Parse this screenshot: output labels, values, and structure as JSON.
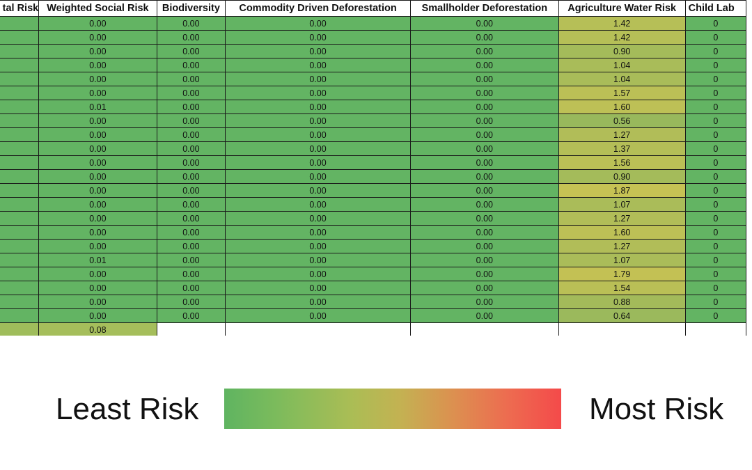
{
  "columns": [
    "tal Risk",
    "Weighted Social Risk",
    "Biodiversity",
    "Commodity Driven Deforestation",
    "Smallholder Deforestation",
    "Agriculture Water Risk",
    "Child Lab"
  ],
  "rows": [
    {
      "social": "0.00",
      "bio": "0.00",
      "commodity": "0.00",
      "smallholder": "0.00",
      "water": "1.42",
      "child": "0"
    },
    {
      "social": "0.00",
      "bio": "0.00",
      "commodity": "0.00",
      "smallholder": "0.00",
      "water": "1.42",
      "child": "0"
    },
    {
      "social": "0.00",
      "bio": "0.00",
      "commodity": "0.00",
      "smallholder": "0.00",
      "water": "0.90",
      "child": "0"
    },
    {
      "social": "0.00",
      "bio": "0.00",
      "commodity": "0.00",
      "smallholder": "0.00",
      "water": "1.04",
      "child": "0"
    },
    {
      "social": "0.00",
      "bio": "0.00",
      "commodity": "0.00",
      "smallholder": "0.00",
      "water": "1.04",
      "child": "0"
    },
    {
      "social": "0.00",
      "bio": "0.00",
      "commodity": "0.00",
      "smallholder": "0.00",
      "water": "1.57",
      "child": "0"
    },
    {
      "social": "0.01",
      "bio": "0.00",
      "commodity": "0.00",
      "smallholder": "0.00",
      "water": "1.60",
      "child": "0"
    },
    {
      "social": "0.00",
      "bio": "0.00",
      "commodity": "0.00",
      "smallholder": "0.00",
      "water": "0.56",
      "child": "0"
    },
    {
      "social": "0.00",
      "bio": "0.00",
      "commodity": "0.00",
      "smallholder": "0.00",
      "water": "1.27",
      "child": "0"
    },
    {
      "social": "0.00",
      "bio": "0.00",
      "commodity": "0.00",
      "smallholder": "0.00",
      "water": "1.37",
      "child": "0"
    },
    {
      "social": "0.00",
      "bio": "0.00",
      "commodity": "0.00",
      "smallholder": "0.00",
      "water": "1.56",
      "child": "0"
    },
    {
      "social": "0.00",
      "bio": "0.00",
      "commodity": "0.00",
      "smallholder": "0.00",
      "water": "0.90",
      "child": "0"
    },
    {
      "social": "0.00",
      "bio": "0.00",
      "commodity": "0.00",
      "smallholder": "0.00",
      "water": "1.87",
      "child": "0"
    },
    {
      "social": "0.00",
      "bio": "0.00",
      "commodity": "0.00",
      "smallholder": "0.00",
      "water": "1.07",
      "child": "0"
    },
    {
      "social": "0.00",
      "bio": "0.00",
      "commodity": "0.00",
      "smallholder": "0.00",
      "water": "1.27",
      "child": "0"
    },
    {
      "social": "0.00",
      "bio": "0.00",
      "commodity": "0.00",
      "smallholder": "0.00",
      "water": "1.60",
      "child": "0"
    },
    {
      "social": "0.00",
      "bio": "0.00",
      "commodity": "0.00",
      "smallholder": "0.00",
      "water": "1.27",
      "child": "0"
    },
    {
      "social": "0.01",
      "bio": "0.00",
      "commodity": "0.00",
      "smallholder": "0.00",
      "water": "1.07",
      "child": "0"
    },
    {
      "social": "0.00",
      "bio": "0.00",
      "commodity": "0.00",
      "smallholder": "0.00",
      "water": "1.79",
      "child": "0"
    },
    {
      "social": "0.00",
      "bio": "0.00",
      "commodity": "0.00",
      "smallholder": "0.00",
      "water": "1.54",
      "child": "0"
    },
    {
      "social": "0.00",
      "bio": "0.00",
      "commodity": "0.00",
      "smallholder": "0.00",
      "water": "0.88",
      "child": "0"
    },
    {
      "social": "0.00",
      "bio": "0.00",
      "commodity": "0.00",
      "smallholder": "0.00",
      "water": "0.64",
      "child": "0"
    }
  ],
  "total_row": {
    "social": "0.08"
  },
  "legend": {
    "least": "Least Risk",
    "most": "Most Risk"
  },
  "colors": {
    "least": "#63b463",
    "mid": "#c6c254",
    "most": "#f44a4a",
    "total_env": "#9fbd5b",
    "total_social": "#a5be5b"
  }
}
